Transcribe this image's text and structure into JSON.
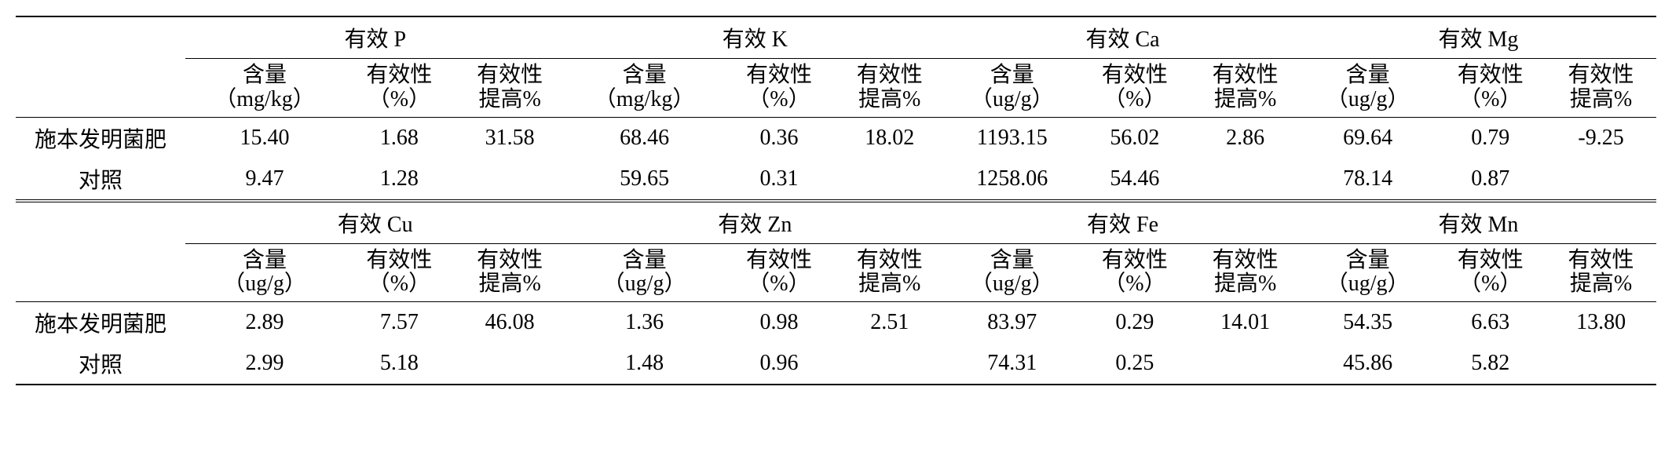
{
  "labels": {
    "treatment": "施本发明菌肥",
    "control": "对照",
    "content": "含量",
    "effectiveness": "有效性",
    "effect_pct": "（%）",
    "improve_line1": "有效性",
    "improve_line2": "提高%",
    "unit_mgkg": "（mg/kg）",
    "unit_ugg": "（ug/g）"
  },
  "sections": [
    {
      "groups": [
        {
          "name": "有效 P",
          "unit": "（mg/kg）"
        },
        {
          "name": "有效 K",
          "unit": "（mg/kg）"
        },
        {
          "name": "有效 Ca",
          "unit": "（ug/g）"
        },
        {
          "name": "有效 Mg",
          "unit": "（ug/g）"
        }
      ],
      "rows": [
        {
          "label": "施本发明菌肥",
          "cells": [
            "15.40",
            "1.68",
            "31.58",
            "68.46",
            "0.36",
            "18.02",
            "1193.15",
            "56.02",
            "2.86",
            "69.64",
            "0.79",
            "-9.25"
          ]
        },
        {
          "label": "对照",
          "cells": [
            "9.47",
            "1.28",
            "",
            "59.65",
            "0.31",
            "",
            "1258.06",
            "54.46",
            "",
            "78.14",
            "0.87",
            ""
          ]
        }
      ]
    },
    {
      "groups": [
        {
          "name": "有效 Cu",
          "unit": "（ug/g）"
        },
        {
          "name": "有效 Zn",
          "unit": "（ug/g）"
        },
        {
          "name": "有效 Fe",
          "unit": "（ug/g）"
        },
        {
          "name": "有效 Mn",
          "unit": "（ug/g）"
        }
      ],
      "rows": [
        {
          "label": "施本发明菌肥",
          "cells": [
            "2.89",
            "7.57",
            "46.08",
            "1.36",
            "0.98",
            "2.51",
            "83.97",
            "0.29",
            "14.01",
            "54.35",
            "6.63",
            "13.80"
          ]
        },
        {
          "label": "对照",
          "cells": [
            "2.99",
            "5.18",
            "",
            "1.48",
            "0.96",
            "",
            "74.31",
            "0.25",
            "",
            "45.86",
            "5.82",
            ""
          ]
        }
      ]
    }
  ]
}
